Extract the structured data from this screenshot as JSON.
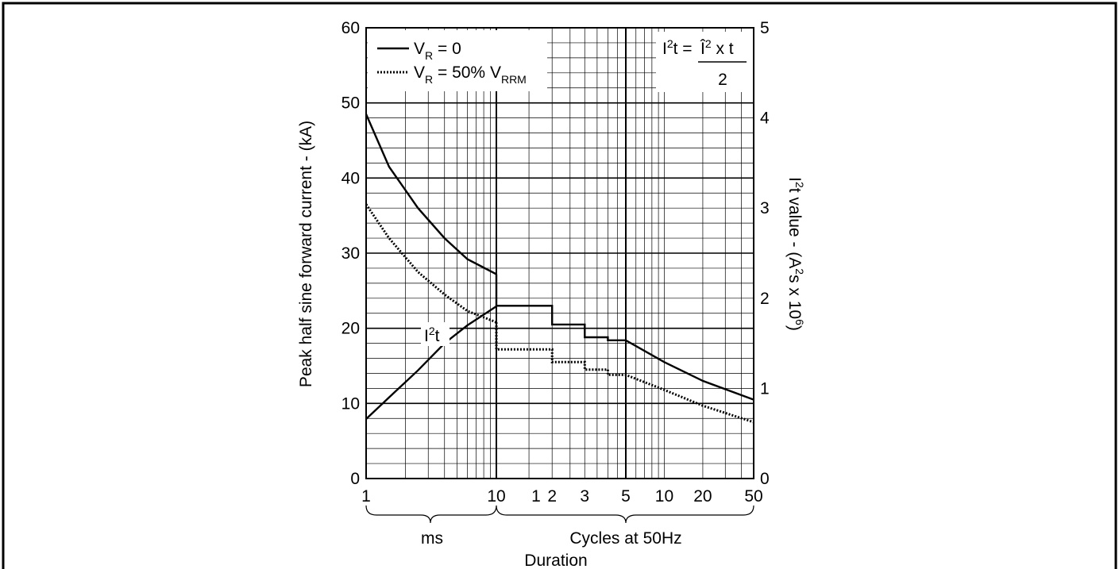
{
  "chart_data": {
    "type": "line",
    "title": "",
    "y_left": {
      "label_parts": [
        "Peak half sine forward current - (kA)"
      ],
      "ticks": [
        "0",
        "10",
        "20",
        "30",
        "40",
        "50",
        "60"
      ],
      "range": [
        0,
        60
      ]
    },
    "y_right": {
      "label_parts": [
        "I",
        "2",
        "t value - (A",
        "2",
        "s x 10",
        "6",
        ")"
      ],
      "ticks": [
        "0",
        "1",
        "2",
        "3",
        "4",
        "5"
      ],
      "range": [
        0,
        5
      ]
    },
    "x_ms": {
      "ticks": [
        "1",
        "10"
      ],
      "label": "ms",
      "range_ms": [
        1,
        10
      ]
    },
    "x_cycles": {
      "ticks": [
        "1",
        "2",
        "3",
        "5",
        "10",
        "20",
        "50"
      ],
      "label": "Cycles at 50Hz",
      "range_cycles": [
        1,
        50
      ]
    },
    "x_label": "Duration",
    "legend": {
      "placement": "top-left",
      "entries": [
        {
          "id": "vr0",
          "style": "solid",
          "parts": [
            "V",
            "R",
            " = 0"
          ]
        },
        {
          "id": "vr50",
          "style": "dotted",
          "parts": [
            "V",
            "R",
            " = 50% V",
            "RRM"
          ]
        }
      ]
    },
    "formula": {
      "placement": "top-right",
      "lhs": [
        "I",
        "2",
        "t = "
      ],
      "numerator": [
        "Î",
        "2",
        " x t"
      ],
      "denominator": "2"
    },
    "annotation": {
      "parts": [
        "I",
        "2",
        "t"
      ]
    },
    "series": [
      {
        "id": "vr0",
        "style": "solid",
        "segments": [
          {
            "axis": "ms",
            "points": [
              [
                1,
                48.5
              ],
              [
                1.5,
                41.5
              ],
              [
                2.5,
                36
              ],
              [
                4,
                32
              ],
              [
                6,
                29.2
              ],
              [
                10,
                27.2
              ]
            ]
          },
          {
            "axis": "cycles",
            "points": [
              [
                1,
                27.2
              ],
              [
                1,
                23
              ],
              [
                2,
                23
              ],
              [
                2,
                20.5
              ],
              [
                3,
                20.5
              ],
              [
                3,
                18.8
              ],
              [
                4,
                18.8
              ],
              [
                4,
                18.4
              ],
              [
                5,
                18.4
              ],
              [
                10,
                15.5
              ],
              [
                20,
                13
              ],
              [
                50,
                10.5
              ]
            ]
          }
        ]
      },
      {
        "id": "vr50",
        "style": "dotted",
        "segments": [
          {
            "axis": "ms",
            "points": [
              [
                1,
                36.5
              ],
              [
                1.5,
                32
              ],
              [
                2.5,
                27.5
              ],
              [
                4,
                24.5
              ],
              [
                6,
                22.3
              ],
              [
                10,
                20.8
              ]
            ]
          },
          {
            "axis": "cycles",
            "points": [
              [
                1,
                20.8
              ],
              [
                1,
                17.2
              ],
              [
                2,
                17.2
              ],
              [
                2,
                15.5
              ],
              [
                3,
                15.5
              ],
              [
                3,
                14.5
              ],
              [
                4,
                14.5
              ],
              [
                4,
                13.8
              ],
              [
                5,
                13.8
              ],
              [
                10,
                11.8
              ],
              [
                20,
                9.7
              ],
              [
                50,
                7.5
              ]
            ]
          }
        ]
      },
      {
        "id": "i2t",
        "style": "solid",
        "units": "A2s x 10^6",
        "segments": [
          {
            "axis": "ms",
            "points": [
              [
                1,
                0.66
              ],
              [
                1.5,
                0.9
              ],
              [
                2.5,
                1.2
              ],
              [
                4,
                1.5
              ],
              [
                6,
                1.7
              ],
              [
                10,
                1.91
              ]
            ]
          }
        ]
      }
    ]
  }
}
